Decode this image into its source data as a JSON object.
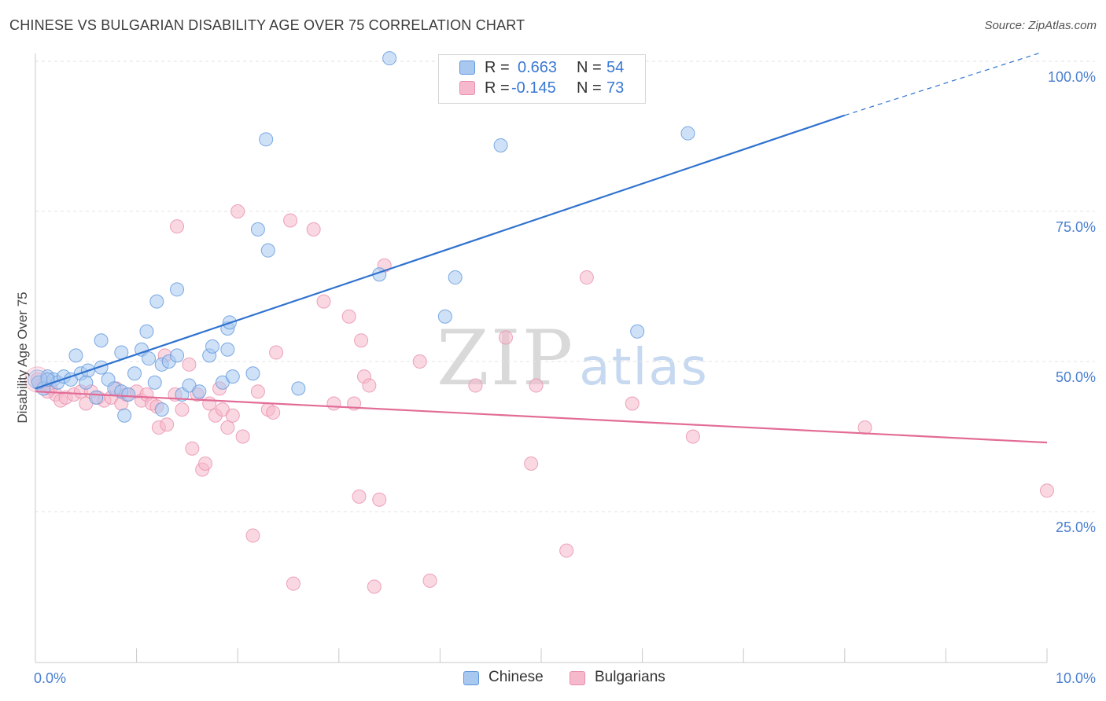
{
  "title": "CHINESE VS BULGARIAN DISABILITY AGE OVER 75 CORRELATION CHART",
  "source": "Source: ZipAtlas.com",
  "watermark": {
    "zip": "ZIP",
    "atlas": "atlas"
  },
  "legend": {
    "rows": [
      {
        "r_label": "R =",
        "r_value": "0.663",
        "n_label": "N =",
        "n_value": "54",
        "color": "#a8c8f0"
      },
      {
        "r_label": "R =",
        "r_value": "-0.145",
        "n_label": "N =",
        "n_value": "73",
        "color": "#f6b8cb"
      }
    ]
  },
  "bottom_legend": [
    {
      "label": "Chinese",
      "color": "#a8c8f0"
    },
    {
      "label": "Bulgarians",
      "color": "#f6b8cb"
    }
  ],
  "colors": {
    "chinese_fill": "#a8c8f0",
    "chinese_stroke": "#5f96dc",
    "chinese_line": "#2f72cf",
    "bulgarian_fill": "#f6b8cb",
    "bulgarian_stroke": "#e88fab",
    "bulgarian_line": "#e26c96",
    "tick_label": "#4a7fd0",
    "grid": "#e3e3e3"
  },
  "chart_data": {
    "type": "scatter",
    "title": "CHINESE VS BULGARIAN DISABILITY AGE OVER 75 CORRELATION CHART",
    "xlabel": "",
    "ylabel": "Disability Age Over 75",
    "xlim": [
      0,
      10
    ],
    "ylim": [
      0,
      105
    ],
    "x_tick_labels": [
      "0.0%",
      "10.0%"
    ],
    "y_ticks": [
      25,
      50,
      75,
      100
    ],
    "y_tick_labels": [
      "25.0%",
      "50.0%",
      "75.0%",
      "100.0%"
    ],
    "grid": true,
    "legend_position": "top-center",
    "series": [
      {
        "name": "Chinese",
        "R": 0.663,
        "N": 54,
        "trendline": {
          "x0": 0,
          "y0": 45.5,
          "x1": 8.0,
          "y1": 91.0,
          "dashed_to_x": 9.95,
          "dashed_to_y": 101.5
        },
        "points": [
          [
            0.03,
            46.5
          ],
          [
            0.08,
            45.5
          ],
          [
            0.12,
            47.5
          ],
          [
            0.18,
            47.0
          ],
          [
            0.22,
            46.5
          ],
          [
            0.28,
            47.5
          ],
          [
            0.35,
            47.0
          ],
          [
            0.45,
            48.0
          ],
          [
            0.52,
            48.5
          ],
          [
            0.6,
            44.0
          ],
          [
            0.65,
            49.0
          ],
          [
            0.72,
            47.0
          ],
          [
            0.78,
            45.5
          ],
          [
            0.85,
            45.0
          ],
          [
            0.92,
            44.5
          ],
          [
            0.98,
            48.0
          ],
          [
            1.05,
            52.0
          ],
          [
            1.12,
            50.5
          ],
          [
            1.18,
            46.5
          ],
          [
            1.25,
            49.5
          ],
          [
            1.32,
            50.0
          ],
          [
            1.4,
            51.0
          ],
          [
            0.4,
            51.0
          ],
          [
            0.65,
            53.5
          ],
          [
            0.85,
            51.5
          ],
          [
            1.1,
            55.0
          ],
          [
            1.2,
            60.0
          ],
          [
            1.4,
            62.0
          ],
          [
            1.45,
            44.5
          ],
          [
            1.52,
            46.0
          ],
          [
            1.62,
            45.0
          ],
          [
            1.72,
            51.0
          ],
          [
            1.75,
            52.5
          ],
          [
            1.85,
            46.5
          ],
          [
            1.9,
            55.5
          ],
          [
            1.9,
            52.0
          ],
          [
            1.92,
            56.5
          ],
          [
            1.95,
            47.5
          ],
          [
            2.15,
            48.0
          ],
          [
            2.2,
            72.0
          ],
          [
            2.28,
            87.0
          ],
          [
            2.3,
            68.5
          ],
          [
            2.6,
            45.5
          ],
          [
            3.4,
            64.5
          ],
          [
            3.5,
            100.5
          ],
          [
            4.05,
            57.5
          ],
          [
            4.15,
            64.0
          ],
          [
            4.6,
            86.0
          ],
          [
            5.95,
            55.0
          ],
          [
            6.45,
            88.0
          ],
          [
            1.25,
            42.0
          ],
          [
            0.88,
            41.0
          ],
          [
            0.12,
            47.0
          ],
          [
            0.5,
            46.5
          ]
        ]
      },
      {
        "name": "Bulgarians",
        "R": -0.145,
        "N": 73,
        "trendline": {
          "x0": 0,
          "y0": 45.0,
          "x1": 10.0,
          "y1": 36.5
        },
        "points": [
          [
            0.02,
            47.0
          ],
          [
            0.05,
            46.0
          ],
          [
            0.1,
            46.5
          ],
          [
            0.15,
            45.5
          ],
          [
            0.2,
            44.5
          ],
          [
            0.25,
            43.5
          ],
          [
            0.3,
            44.0
          ],
          [
            0.38,
            44.5
          ],
          [
            0.45,
            45.0
          ],
          [
            0.5,
            43.0
          ],
          [
            0.55,
            45.0
          ],
          [
            0.62,
            44.0
          ],
          [
            0.68,
            43.5
          ],
          [
            0.75,
            44.0
          ],
          [
            0.8,
            45.5
          ],
          [
            0.85,
            43.0
          ],
          [
            0.9,
            44.5
          ],
          [
            1.0,
            45.0
          ],
          [
            1.05,
            43.5
          ],
          [
            1.1,
            44.5
          ],
          [
            1.15,
            43.0
          ],
          [
            1.2,
            42.5
          ],
          [
            1.22,
            39.0
          ],
          [
            1.28,
            51.0
          ],
          [
            1.3,
            39.5
          ],
          [
            1.38,
            44.5
          ],
          [
            1.4,
            72.5
          ],
          [
            1.45,
            42.0
          ],
          [
            1.52,
            49.5
          ],
          [
            1.55,
            35.5
          ],
          [
            1.6,
            44.5
          ],
          [
            1.65,
            32.0
          ],
          [
            1.68,
            33.0
          ],
          [
            1.72,
            43.0
          ],
          [
            1.78,
            41.0
          ],
          [
            1.82,
            45.5
          ],
          [
            1.85,
            42.0
          ],
          [
            1.9,
            39.0
          ],
          [
            1.95,
            41.0
          ],
          [
            2.0,
            75.0
          ],
          [
            2.05,
            37.5
          ],
          [
            2.15,
            21.0
          ],
          [
            2.2,
            45.0
          ],
          [
            2.3,
            42.0
          ],
          [
            2.35,
            41.5
          ],
          [
            2.38,
            51.5
          ],
          [
            2.52,
            73.5
          ],
          [
            2.55,
            13.0
          ],
          [
            2.75,
            72.0
          ],
          [
            2.85,
            60.0
          ],
          [
            2.95,
            43.0
          ],
          [
            3.1,
            57.5
          ],
          [
            3.15,
            43.0
          ],
          [
            3.2,
            27.5
          ],
          [
            3.22,
            53.5
          ],
          [
            3.25,
            47.5
          ],
          [
            3.3,
            46.0
          ],
          [
            3.35,
            12.5
          ],
          [
            3.4,
            27.0
          ],
          [
            3.45,
            66.0
          ],
          [
            3.8,
            50.0
          ],
          [
            3.9,
            13.5
          ],
          [
            4.35,
            46.0
          ],
          [
            4.65,
            54.0
          ],
          [
            4.9,
            33.0
          ],
          [
            4.95,
            46.0
          ],
          [
            5.25,
            18.5
          ],
          [
            5.45,
            64.0
          ],
          [
            5.9,
            43.0
          ],
          [
            6.5,
            37.5
          ],
          [
            8.2,
            39.0
          ],
          [
            10.0,
            28.5
          ],
          [
            0.12,
            45.0
          ]
        ]
      }
    ]
  }
}
